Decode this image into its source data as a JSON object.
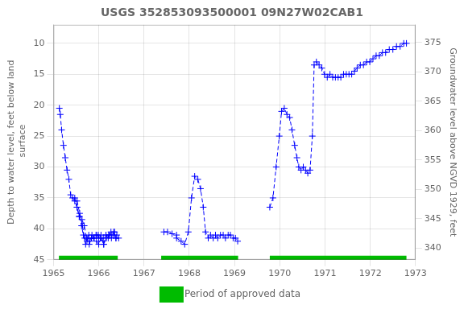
{
  "chart_data": {
    "type": "line",
    "title": "USGS 352853093500001 09N27W02CAB1",
    "ylabel": "Depth to water level, feet below land\n surface",
    "y2label": "Groundwater level above NGVD 1929, feet",
    "xlim": [
      1965,
      1973
    ],
    "xticks": [
      1965,
      1966,
      1967,
      1968,
      1969,
      1970,
      1971,
      1972,
      1973
    ],
    "ylim": [
      45,
      7
    ],
    "yticks": [
      10,
      15,
      20,
      25,
      30,
      35,
      40,
      45
    ],
    "y2lim": [
      338,
      378
    ],
    "y2ticks": [
      340,
      345,
      350,
      355,
      360,
      365,
      370,
      375
    ],
    "grid": true,
    "legend": "bottom",
    "approved_periods": {
      "name": "Period of approved data",
      "color": "#00bb00",
      "periods": [
        [
          1965.12,
          1966.42
        ],
        [
          1967.38,
          1969.08
        ],
        [
          1969.78,
          1972.8
        ]
      ]
    },
    "series": [
      {
        "color": "#0000ff",
        "marker": "plus",
        "line_style": "dashed",
        "x": [
          1965.13,
          1965.15,
          1965.18,
          1965.22,
          1965.26,
          1965.3,
          1965.34,
          1965.38,
          1965.42,
          1965.47,
          1965.52,
          1965.57,
          1965.63,
          1965.68,
          1965.73,
          1965.78,
          1965.84,
          1965.89,
          1965.94,
          1965.99,
          1966.04,
          1966.1,
          1966.16,
          1966.21,
          1966.27,
          1966.33,
          1966.38,
          1966.44
        ],
        "values": [
          20.5,
          21.5,
          24.0,
          26.5,
          28.5,
          30.5,
          32.0,
          34.5,
          35.0,
          35.5,
          36.5,
          38.0,
          38.5,
          39.5,
          41.5,
          41.0,
          41.5,
          41.5,
          41.0,
          41.0,
          41.5,
          41.5,
          41.0,
          41.5,
          40.5,
          40.5,
          41.5,
          41.5
        ]
      },
      {
        "color": "#0000ff",
        "marker": "plus",
        "line_style": "dashed",
        "x": [
          1965.47,
          1965.52,
          1965.57,
          1965.62,
          1965.66,
          1965.71,
          1965.76,
          1965.8,
          1965.85,
          1965.9,
          1965.95,
          1966.0,
          1966.05,
          1966.11,
          1966.16,
          1966.22,
          1966.28,
          1966.33,
          1966.38
        ],
        "values": [
          35.0,
          36.5,
          38.0,
          39.5,
          41.0,
          42.5,
          41.5,
          42.0,
          41.0,
          41.5,
          41.0,
          41.5,
          41.0,
          42.5,
          41.0,
          41.0,
          41.5,
          41.0,
          41.5
        ]
      },
      {
        "color": "#0000ff",
        "marker": "plus",
        "line_style": "dashed",
        "x": [
          1965.52,
          1965.58,
          1965.64,
          1965.69,
          1965.74,
          1965.79,
          1965.84,
          1965.89,
          1965.95,
          1966.0,
          1966.05,
          1966.11,
          1966.17,
          1966.23,
          1966.29,
          1966.35,
          1966.4
        ],
        "values": [
          35.5,
          37.5,
          39.5,
          41.5,
          42.0,
          42.5,
          41.5,
          41.5,
          42.0,
          42.5,
          41.5,
          42.5,
          41.5,
          41.0,
          41.0,
          40.5,
          41.0
        ]
      },
      {
        "color": "#0000ff",
        "marker": "plus",
        "line_style": "dashed",
        "x": [
          1967.44,
          1967.52,
          1967.62,
          1967.72
        ],
        "values": [
          40.5,
          40.5,
          40.8,
          41.0
        ]
      },
      {
        "color": "#0000ff",
        "marker": "plus",
        "line_style": "dashed",
        "x": [
          1967.72,
          1967.82,
          1967.9,
          1967.98,
          1968.05,
          1968.12,
          1968.19,
          1968.25,
          1968.31,
          1968.36,
          1968.42,
          1968.47,
          1968.53,
          1968.58,
          1968.63,
          1968.69,
          1968.75,
          1968.8,
          1968.86,
          1968.91,
          1968.97,
          1969.02,
          1969.07
        ],
        "values": [
          41.5,
          42.0,
          42.5,
          40.5,
          35.0,
          31.5,
          32.0,
          33.5,
          36.5,
          40.5,
          41.5,
          41.0,
          41.5,
          41.0,
          41.5,
          41.0,
          41.0,
          41.5,
          41.0,
          41.0,
          41.5,
          41.5,
          42.0
        ]
      },
      {
        "color": "#0000ff",
        "marker": "plus",
        "line_style": "dashed",
        "x": [
          1969.78,
          1969.85,
          1969.92,
          1969.99,
          1970.04,
          1970.1,
          1970.16,
          1970.22,
          1970.27,
          1970.33,
          1970.38,
          1970.42,
          1970.47,
          1970.52,
          1970.57,
          1970.62,
          1970.67,
          1970.72,
          1970.76,
          1970.81,
          1970.87,
          1970.93,
          1970.99,
          1971.05,
          1971.11,
          1971.17,
          1971.23,
          1971.29,
          1971.35,
          1971.41,
          1971.47,
          1971.53,
          1971.59,
          1971.65,
          1971.71,
          1971.78,
          1971.85,
          1971.92,
          1971.99,
          1972.06,
          1972.13,
          1972.2,
          1972.27,
          1972.34,
          1972.42,
          1972.5,
          1972.58,
          1972.66,
          1972.74,
          1972.8
        ],
        "values": [
          36.5,
          35.0,
          30.0,
          25.0,
          21.0,
          20.5,
          21.5,
          22.0,
          24.0,
          26.5,
          28.5,
          30.0,
          30.5,
          30.0,
          30.5,
          31.0,
          30.5,
          25.0,
          13.5,
          13.0,
          13.5,
          14.0,
          15.0,
          15.5,
          15.0,
          15.5,
          15.5,
          15.5,
          15.5,
          15.0,
          15.0,
          15.0,
          15.0,
          14.5,
          14.0,
          13.5,
          13.5,
          13.0,
          13.0,
          12.5,
          12.0,
          12.0,
          11.5,
          11.5,
          11.0,
          11.0,
          10.5,
          10.5,
          10.0,
          10.0
        ]
      }
    ]
  }
}
